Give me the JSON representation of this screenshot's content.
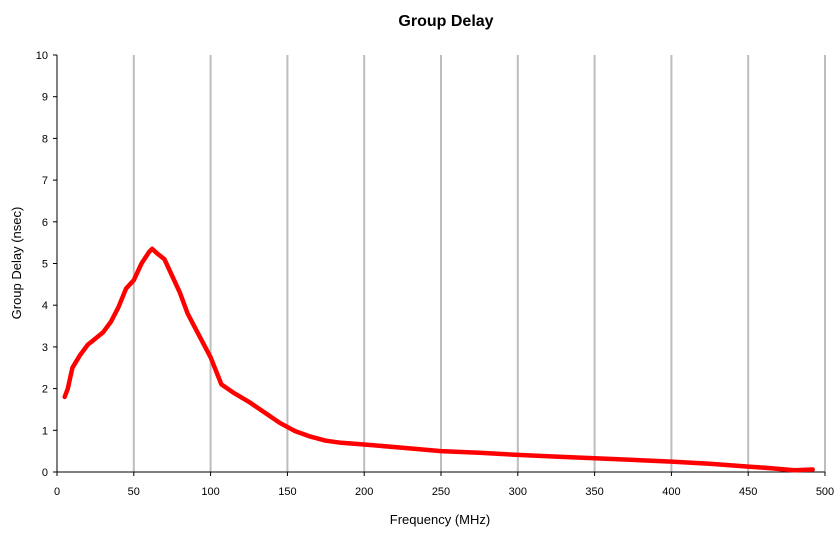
{
  "chart_data": {
    "type": "line",
    "title": "Group Delay",
    "xlabel": "Frequency (MHz)",
    "ylabel": "Group Delay (nsec)",
    "xlim": [
      0,
      500
    ],
    "ylim": [
      0,
      10
    ],
    "x_ticks": [
      "0",
      "50",
      "100",
      "150",
      "200",
      "250",
      "300",
      "350",
      "400",
      "450",
      "500"
    ],
    "y_ticks": [
      "0",
      "1",
      "2",
      "3",
      "4",
      "5",
      "6",
      "7",
      "8",
      "9",
      "10"
    ],
    "grid": "vertical",
    "legend": "none",
    "series": [
      {
        "color": "#ff0000",
        "x": [
          5,
          7,
          10,
          15,
          20,
          25,
          30,
          35,
          40,
          45,
          50,
          55,
          60,
          62,
          65,
          70,
          75,
          80,
          85,
          90,
          95,
          100,
          107,
          115,
          125,
          135,
          145,
          155,
          165,
          175,
          185,
          200,
          225,
          250,
          275,
          300,
          325,
          350,
          375,
          400,
          425,
          450,
          465,
          480,
          492
        ],
        "y": [
          1.8,
          2.0,
          2.5,
          2.8,
          3.05,
          3.2,
          3.35,
          3.6,
          3.95,
          4.4,
          4.6,
          5.0,
          5.28,
          5.35,
          5.25,
          5.1,
          4.7,
          4.3,
          3.8,
          3.45,
          3.1,
          2.75,
          2.1,
          1.9,
          1.68,
          1.43,
          1.18,
          0.98,
          0.85,
          0.75,
          0.7,
          0.66,
          0.58,
          0.5,
          0.46,
          0.41,
          0.37,
          0.33,
          0.29,
          0.25,
          0.2,
          0.13,
          0.09,
          0.04,
          0.06
        ]
      }
    ]
  }
}
